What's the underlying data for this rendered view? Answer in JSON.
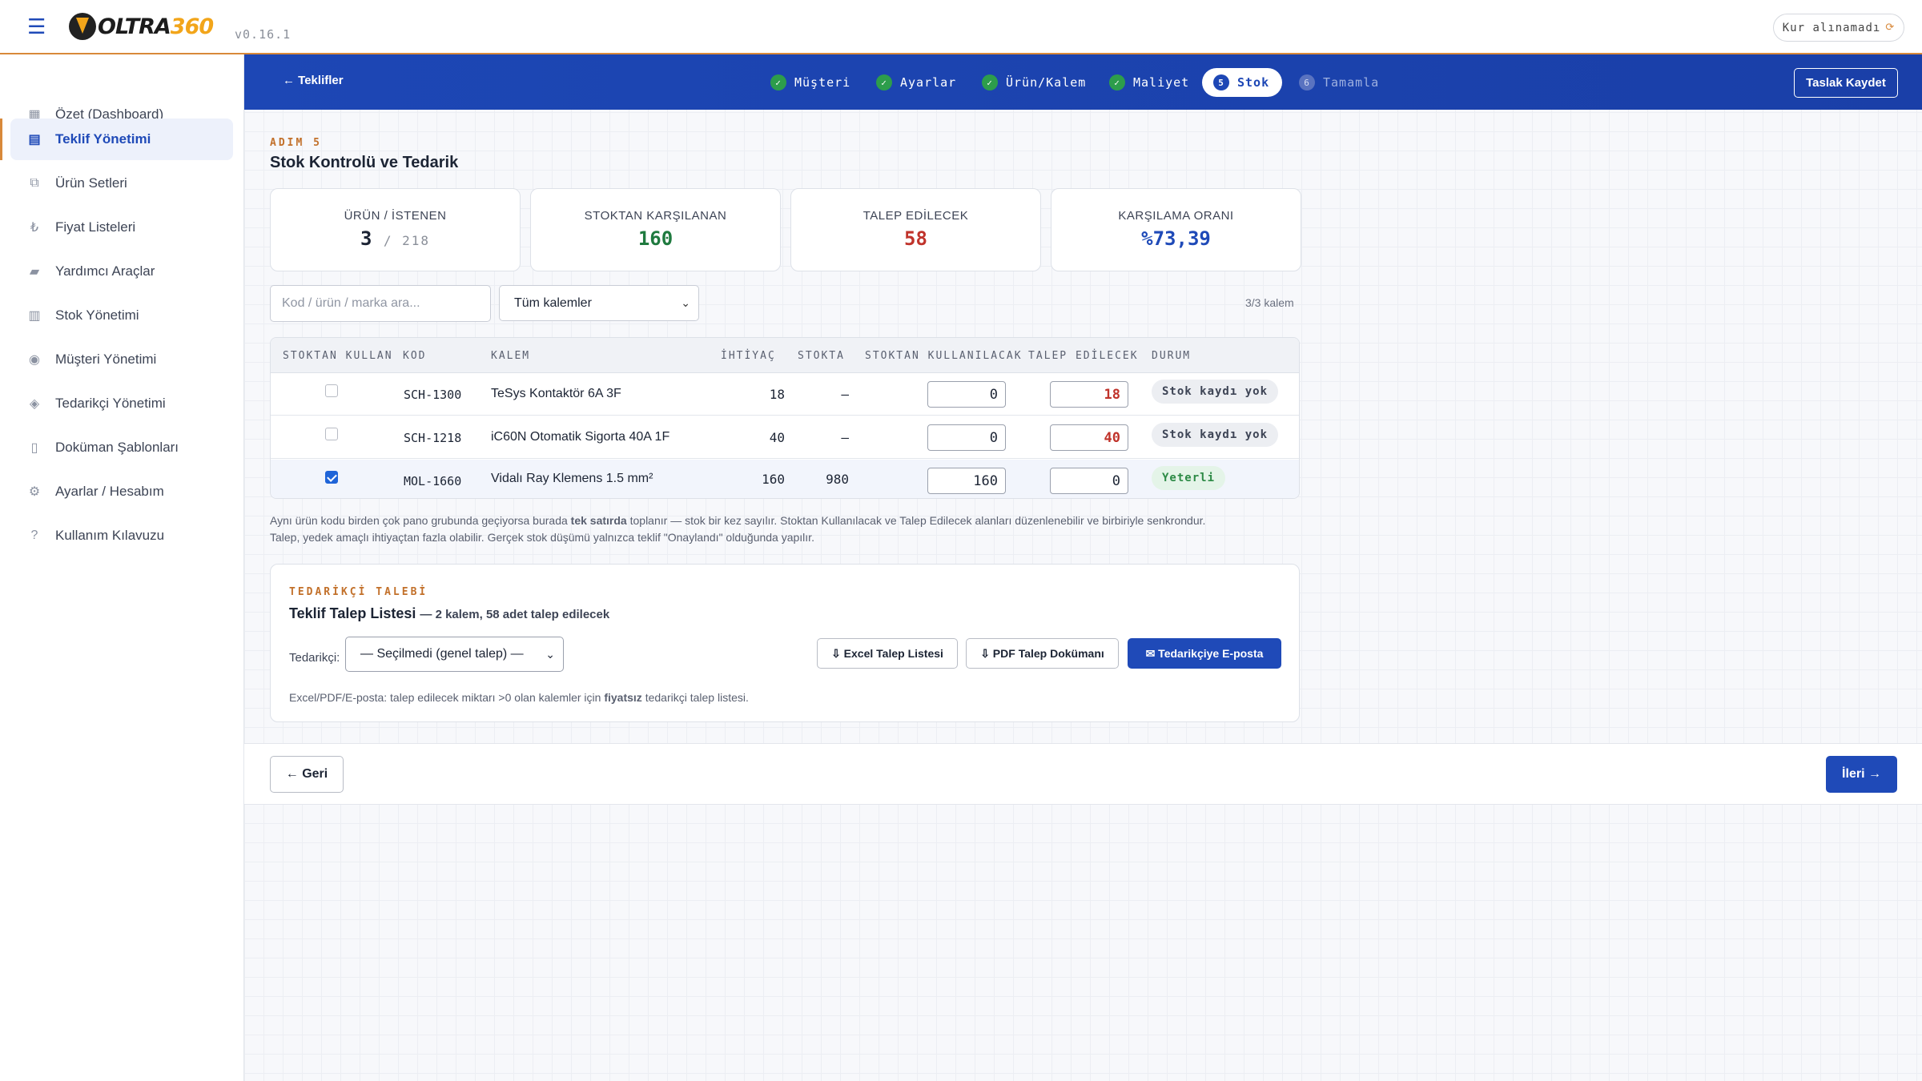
{
  "app": {
    "logo_text": "OLTRA",
    "logo_num": "360",
    "version": "v0.16.1",
    "currency_status": "Kur alınamadı",
    "currency_icon": "refresh-icon"
  },
  "sidebar": {
    "items": [
      {
        "label": "Özet (Dashboard)",
        "icon": "▦"
      },
      {
        "label": "Teklif Yönetimi",
        "icon": "▤"
      },
      {
        "label": "Ürün Setleri",
        "icon": "⧉"
      },
      {
        "label": "Fiyat Listeleri",
        "icon": "₺"
      },
      {
        "label": "Yardımcı Araçlar",
        "icon": "▰"
      },
      {
        "label": "Stok Yönetimi",
        "icon": "▥"
      },
      {
        "label": "Müşteri Yönetimi",
        "icon": "◉"
      },
      {
        "label": "Tedarikçi Yönetimi",
        "icon": "◈"
      },
      {
        "label": "Doküman Şablonları",
        "icon": "▯"
      },
      {
        "label": "Ayarlar / Hesabım",
        "icon": "⚙"
      },
      {
        "label": "Kullanım Kılavuzu",
        "icon": "?"
      }
    ]
  },
  "stepbar": {
    "back": "← Teklifler",
    "steps": [
      {
        "num": "✓",
        "label": "Müşteri"
      },
      {
        "num": "✓",
        "label": "Ayarlar"
      },
      {
        "num": "✓",
        "label": "Ürün/Kalem"
      },
      {
        "num": "✓",
        "label": "Maliyet"
      },
      {
        "num": "5",
        "label": "Stok"
      },
      {
        "num": "6",
        "label": "Tamamla"
      }
    ],
    "save_draft": "Taslak Kaydet"
  },
  "page": {
    "eyebrow": "ADIM 5",
    "title": "Stok Kontrolü ve Tedarik"
  },
  "stats": {
    "products": {
      "label": "ÜRÜN / İSTENEN",
      "value": "3",
      "total": "/ 218"
    },
    "from_stock": {
      "label": "STOKTAN KARŞILANAN",
      "value": "160"
    },
    "to_request": {
      "label": "TALEP EDİLECEK",
      "value": "58"
    },
    "ratio": {
      "label": "KARŞILAMA ORANI",
      "value": "%73,39"
    }
  },
  "colors": {
    "green": "#1f7a3f",
    "red": "#c0332b",
    "blue": "#1f4ab8"
  },
  "filters": {
    "search_placeholder": "Kod / ürün / marka ara...",
    "select_value": "Tüm kalemler",
    "count": "3/3 kalem"
  },
  "table": {
    "headers": [
      "STOKTAN KULLAN",
      "KOD",
      "KALEM",
      "İHTİYAÇ",
      "STOKTA",
      "STOKTAN KULLANILACAK",
      "TALEP EDİLECEK",
      "DURUM"
    ],
    "rows": [
      {
        "checked": false,
        "code": "SCH-1300",
        "item": "TeSys Kontaktör 6A 3F",
        "need": "18",
        "stock": "—",
        "use": "0",
        "request": "18",
        "status": "Stok kaydı yok"
      },
      {
        "checked": false,
        "code": "SCH-1218",
        "item": "iC60N Otomatik Sigorta 40A 1F",
        "need": "40",
        "stock": "—",
        "use": "0",
        "request": "40",
        "status": "Stok kaydı yok"
      },
      {
        "checked": true,
        "code": "MOL-1660",
        "item": "Vidalı Ray Klemens 1.5 mm²",
        "need": "160",
        "stock": "980",
        "use": "160",
        "request": "0",
        "status": "Yeterli"
      }
    ]
  },
  "note": {
    "p1": "Aynı ürün kodu birden çok pano grubunda geçiyorsa burada ",
    "p1_bold": "tek satırda",
    "p2": " toplanır — stok bir kez sayılır. Stoktan Kullanılacak ve Talep Edilecek alanları düzenlenebilir ve birbiriyle senkrondur.",
    "p3": "Talep, yedek amaçlı ihtiyaçtan fazla olabilir. Gerçek stok düşümü yalnızca teklif \"Onaylandı\" olduğunda yapılır."
  },
  "supplier": {
    "eyebrow": "TEDARİKÇİ TALEBİ",
    "title": "Teklif Talep Listesi",
    "subtitle": "— 2 kalem, 58 adet talep edilecek",
    "label": "Tedarikçi:",
    "select_value": "— Seçilmedi (genel talep) —",
    "btn_excel": "⇩ Excel Talep Listesi",
    "btn_pdf": "⇩ PDF Talep Dokümanı",
    "btn_email": "✉ Tedarikçiye E-posta",
    "footer_1": "Excel/PDF/E-posta: talep edilecek miktarı >0 olan kalemler için ",
    "footer_bold": "fiyatsız",
    "footer_2": " tedarikçi talep listesi."
  },
  "footer": {
    "back": "← Geri",
    "next": "İleri →"
  }
}
